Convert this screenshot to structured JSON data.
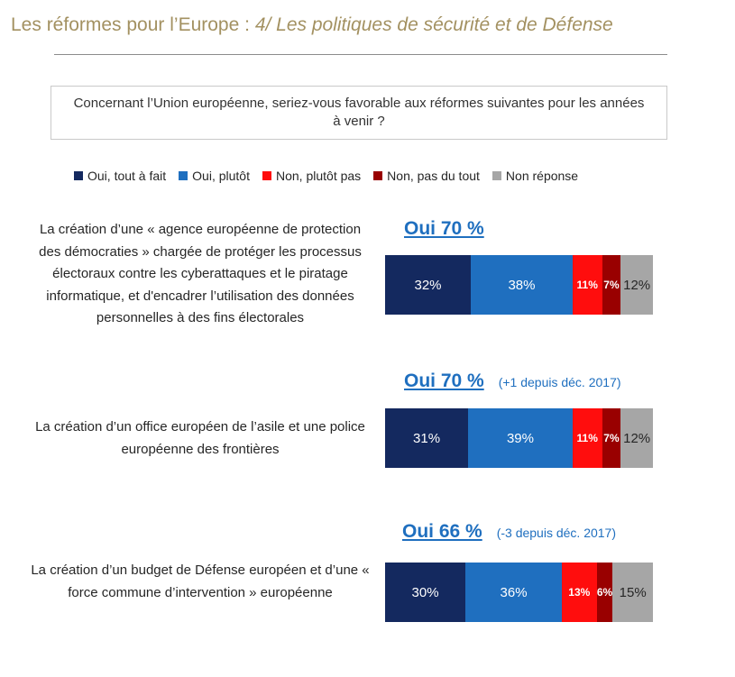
{
  "header": {
    "title_main": "Les réformes pour l’Europe :",
    "title_sub": "4/ Les politiques de sécurité et de Défense"
  },
  "question": "Concernant l’Union européenne, seriez-vous favorable aux réformes suivantes pour les années à venir ?",
  "colors": {
    "title": "#a39161",
    "oui_tout_a_fait": "#14295f",
    "oui_plutot": "#1f6fbf",
    "non_plutot_pas": "#ff0d0d",
    "non_pas_du_tout": "#990000",
    "non_reponse": "#a6a6a6"
  },
  "chart_data": {
    "type": "bar",
    "orientation": "horizontal",
    "stacked": true,
    "unit": "%",
    "legend_position": "top",
    "series": [
      {
        "name": "Oui, tout à fait",
        "color": "#14295f",
        "values": [
          32,
          31,
          30
        ]
      },
      {
        "name": "Oui, plutôt",
        "color": "#1f6fbf",
        "values": [
          38,
          39,
          36
        ]
      },
      {
        "name": "Non, plutôt pas",
        "color": "#ff0d0d",
        "values": [
          11,
          11,
          13
        ]
      },
      {
        "name": "Non, pas du tout",
        "color": "#990000",
        "values": [
          7,
          7,
          6
        ]
      },
      {
        "name": "Non réponse",
        "color": "#a6a6a6",
        "values": [
          12,
          12,
          15
        ]
      }
    ],
    "rows": [
      {
        "label": "La création d’une « agence européenne de protection des démocraties » chargée de protéger les processus électoraux contre les cyberattaques et le piratage informatique, et d'encadrer l’utilisation des données personnelles à des fins électorales",
        "total_oui": "Oui 70 %",
        "delta": ""
      },
      {
        "label": "La création d’un office européen de l’asile et une police européenne des frontières",
        "total_oui": "Oui 70 %",
        "delta": "(+1 depuis déc. 2017)"
      },
      {
        "label": "La création d’un budget de Défense européen et d’une « force commune d’intervention » européenne",
        "total_oui": "Oui 66 %",
        "delta": "(-3 depuis déc. 2017)"
      }
    ]
  }
}
